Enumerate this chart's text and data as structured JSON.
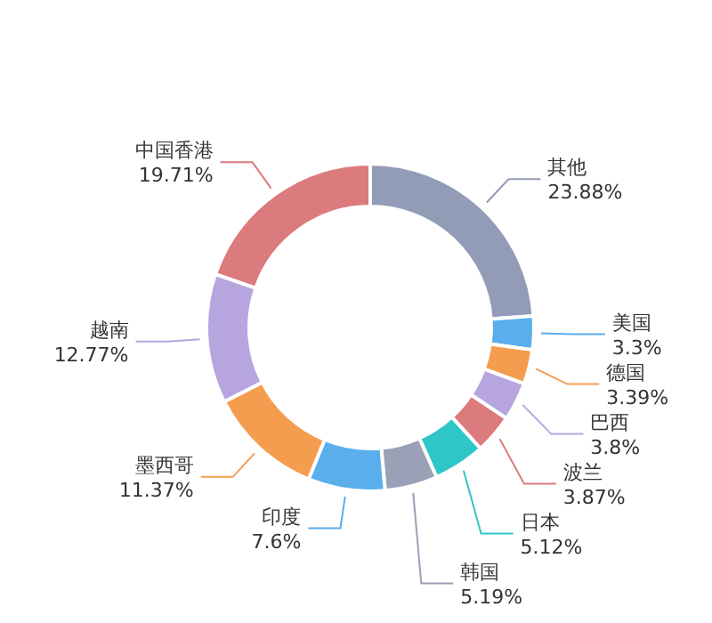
{
  "chart_data": {
    "type": "donut",
    "categories": [
      "其他",
      "美国",
      "德国",
      "巴西",
      "波兰",
      "日本",
      "韩国",
      "印度",
      "墨西哥",
      "越南",
      "中国香港"
    ],
    "values": [
      23.88,
      3.3,
      3.39,
      3.8,
      3.87,
      5.12,
      5.19,
      7.6,
      11.37,
      12.77,
      19.71
    ],
    "colors": [
      "#929cb6",
      "#5aaeec",
      "#f59d4f",
      "#b7a5e0",
      "#dc7b7e",
      "#2fc6c8",
      "#9aa0b5",
      "#5aaeec",
      "#f59d4f",
      "#b7a5e0",
      "#dc7b7e"
    ],
    "value_labels": [
      "23.88%",
      "3.3%",
      "3.39%",
      "3.8%",
      "3.87%",
      "5.12%",
      "5.19%",
      "7.6%",
      "11.37%",
      "12.77%",
      "19.71%"
    ]
  }
}
